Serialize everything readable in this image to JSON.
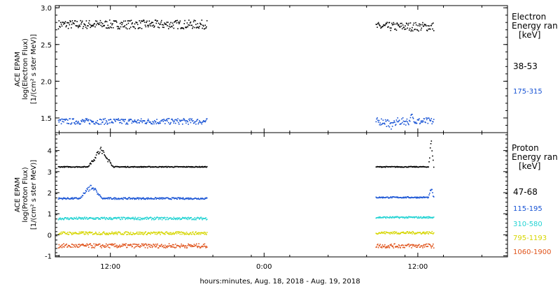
{
  "chart_data": [
    {
      "type": "scatter",
      "panel": "electron",
      "ylabel": [
        "ACE EPAM",
        "log(Electron Flux)",
        "[1/(cm² s ster MeV)]"
      ],
      "ylim": [
        1.3,
        3.03
      ],
      "yticks": [
        1.5,
        2.0,
        2.5,
        3.0
      ],
      "ytick_labels": [
        "1.5",
        "2.0",
        "2.5",
        "3.0"
      ],
      "legend": {
        "title": [
          "Electron",
          "Energy ran",
          "[keV]"
        ],
        "entries": [
          "38-53",
          "175-315"
        ]
      },
      "series": [
        {
          "name": "38-53",
          "color": "#000000",
          "segments": [
            {
              "x": [
                7.9,
                19.5
              ],
              "level": 2.78,
              "noise": 0.06,
              "events": []
            },
            {
              "x": [
                32.7,
                37.2
              ],
              "level": 2.75,
              "noise": 0.06,
              "events": []
            }
          ]
        },
        {
          "name": "175-315",
          "color": "#1652d4",
          "segments": [
            {
              "x": [
                7.9,
                19.5
              ],
              "level": 1.46,
              "noise": 0.04,
              "events": []
            },
            {
              "x": [
                32.7,
                37.2
              ],
              "level": 1.46,
              "noise": 0.05,
              "events": [
                [
                  33.4,
                  34.3,
                  -0.07
                ],
                [
                  35.3,
                  35.8,
                  0.08
                ]
              ]
            }
          ]
        }
      ]
    },
    {
      "type": "scatter",
      "panel": "proton",
      "ylabel": [
        "ACE EPAM",
        "log(Proton Flux)",
        "[1/(cm² s ster MeV)]"
      ],
      "ylim": [
        -1.05,
        4.85
      ],
      "yticks": [
        -1,
        0,
        1,
        2,
        3,
        4
      ],
      "ytick_labels": [
        "-1",
        "0",
        "1",
        "2",
        "3",
        "4"
      ],
      "legend": {
        "title": [
          "Proton",
          "Energy ran",
          "[keV]"
        ],
        "entries": [
          "47-68",
          "115-195",
          "310-580",
          "795-1193",
          "1060-1900"
        ]
      },
      "series": [
        {
          "name": "47-68",
          "color": "#000000",
          "segments": [
            {
              "x": [
                7.9,
                19.5
              ],
              "level": 3.25,
              "noise": 0.02,
              "events": [
                [
                  10.2,
                  12.2,
                  0.85
                ]
              ]
            },
            {
              "x": [
                32.7,
                37.2
              ],
              "level": 3.25,
              "noise": 0.02,
              "events": [
                [
                  36.8,
                  37.2,
                  1.3
                ]
              ]
            }
          ]
        },
        {
          "name": "115-195",
          "color": "#1652d4",
          "segments": [
            {
              "x": [
                7.9,
                19.5
              ],
              "level": 1.75,
              "noise": 0.04,
              "events": [
                [
                  9.6,
                  11.3,
                  0.65
                ]
              ]
            },
            {
              "x": [
                32.7,
                37.2
              ],
              "level": 1.8,
              "noise": 0.03,
              "events": [
                [
                  36.8,
                  37.2,
                  0.45
                ]
              ]
            }
          ]
        },
        {
          "name": "310-580",
          "color": "#22d3d3",
          "segments": [
            {
              "x": [
                7.9,
                19.5
              ],
              "level": 0.8,
              "noise": 0.06,
              "events": []
            },
            {
              "x": [
                32.7,
                37.2
              ],
              "level": 0.85,
              "noise": 0.04,
              "events": []
            }
          ]
        },
        {
          "name": "795-1193",
          "color": "#d6d600",
          "segments": [
            {
              "x": [
                7.9,
                19.5
              ],
              "level": 0.1,
              "noise": 0.07,
              "events": []
            },
            {
              "x": [
                32.7,
                37.2
              ],
              "level": 0.12,
              "noise": 0.06,
              "events": []
            }
          ]
        },
        {
          "name": "1060-1900",
          "color": "#e0541c",
          "segments": [
            {
              "x": [
                7.9,
                19.5
              ],
              "level": -0.5,
              "noise": 0.1,
              "events": []
            },
            {
              "x": [
                32.7,
                37.2
              ],
              "level": -0.5,
              "noise": 0.1,
              "events": []
            }
          ]
        }
      ]
    }
  ],
  "x_axis": {
    "xlim": [
      7.7,
      43.0
    ],
    "tick_positions": [
      12,
      24,
      36
    ],
    "tick_labels": [
      "12:00",
      "0:00",
      "12:00"
    ],
    "xlabel": "hours:minutes, Aug. 18, 2018 - Aug. 19, 2018"
  }
}
